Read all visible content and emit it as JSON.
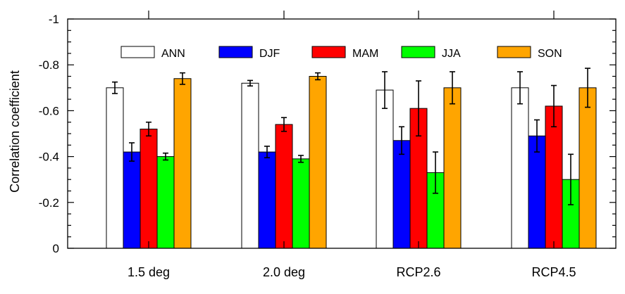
{
  "chart_data": {
    "type": "bar",
    "ylabel": "Correlation coefficient",
    "ylim": [
      0,
      -1
    ],
    "y_axis_direction": "reversed",
    "y_ticks": [
      0,
      -0.2,
      -0.4,
      -0.6,
      -0.8,
      -1
    ],
    "y_tick_labels": [
      "0",
      "-0.2",
      "-0.4",
      "-0.6",
      "-0.8",
      "-1"
    ],
    "categories": [
      "1.5 deg",
      "2.0 deg",
      "RCP2.6",
      "RCP4.5"
    ],
    "legend_placement": "top",
    "series": [
      {
        "name": "ANN",
        "color": "#ffffff",
        "values": [
          -0.7,
          -0.72,
          -0.69,
          -0.7
        ],
        "error": [
          0.025,
          0.012,
          0.08,
          0.07
        ]
      },
      {
        "name": "DJF",
        "color": "#0000ff",
        "values": [
          -0.42,
          -0.42,
          -0.47,
          -0.49
        ],
        "error": [
          0.04,
          0.025,
          0.06,
          0.07
        ]
      },
      {
        "name": "MAM",
        "color": "#ff0000",
        "values": [
          -0.52,
          -0.54,
          -0.61,
          -0.62
        ],
        "error": [
          0.03,
          0.03,
          0.12,
          0.09
        ]
      },
      {
        "name": "JJA",
        "color": "#00ff00",
        "values": [
          -0.4,
          -0.39,
          -0.33,
          -0.3
        ],
        "error": [
          0.015,
          0.015,
          0.09,
          0.11
        ]
      },
      {
        "name": "SON",
        "color": "#ffa500",
        "values": [
          -0.74,
          -0.75,
          -0.7,
          -0.7
        ],
        "error": [
          0.025,
          0.015,
          0.07,
          0.085
        ]
      }
    ]
  }
}
